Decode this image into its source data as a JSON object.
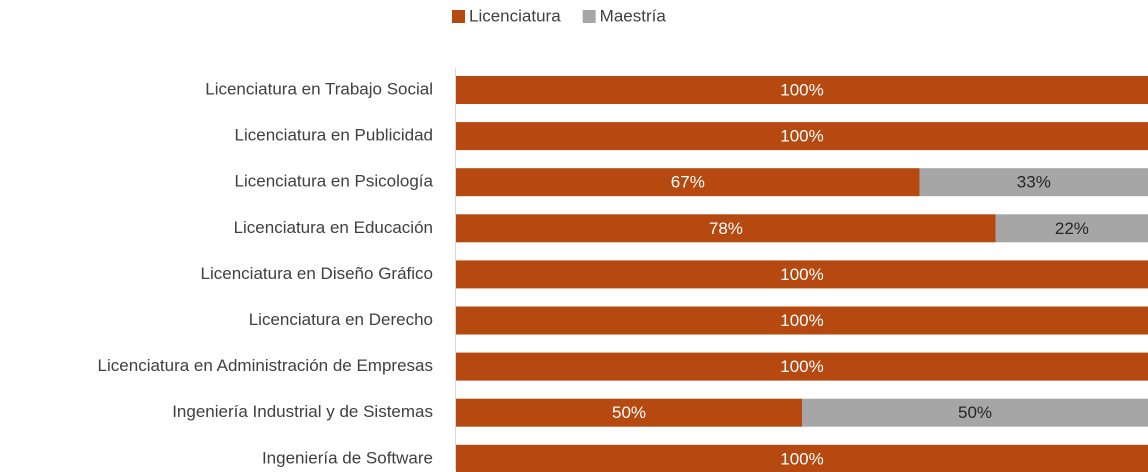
{
  "chart_data": {
    "type": "stacked_bar",
    "orientation": "horizontal",
    "categories": [
      "Licenciatura en Trabajo Social",
      "Licenciatura en Publicidad",
      "Licenciatura en Psicología",
      "Licenciatura en Educación",
      "Licenciatura en Diseño Gráfico",
      "Licenciatura en Derecho",
      "Licenciatura en Administración de Empresas",
      "Ingeniería Industrial y de Sistemas",
      "Ingeniería de Software"
    ],
    "series": [
      {
        "name": "Licenciatura",
        "color": "#b5490f",
        "values": [
          100,
          100,
          67,
          78,
          100,
          100,
          100,
          50,
          100
        ],
        "value_labels": [
          "100%",
          "100%",
          "67%",
          "78%",
          "100%",
          "100%",
          "100%",
          "50%",
          "100%"
        ]
      },
      {
        "name": "Maestría",
        "color": "#a6a6a6",
        "values": [
          0,
          0,
          33,
          22,
          0,
          0,
          0,
          50,
          0
        ],
        "value_labels": [
          null,
          null,
          "33%",
          "22%",
          null,
          null,
          null,
          "50%",
          null
        ]
      }
    ],
    "xlim": [
      0,
      100
    ],
    "legend": "top"
  }
}
